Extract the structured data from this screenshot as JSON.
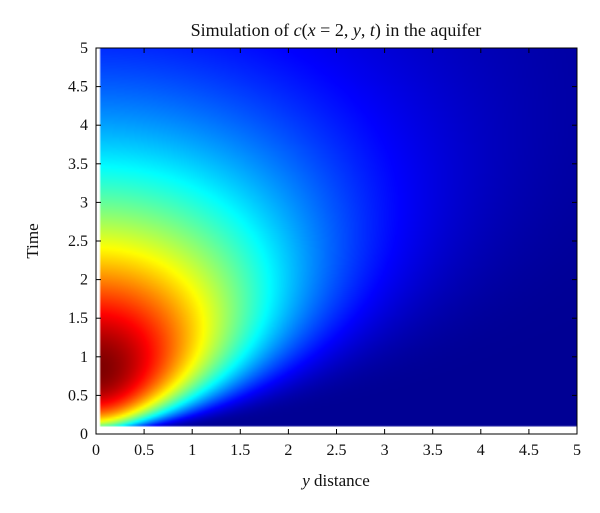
{
  "chart_data": {
    "type": "heatmap",
    "title": {
      "prefix": "Simulation of ",
      "func": "c",
      "args_open": "(",
      "x_var": "x",
      "x_eq": " = 2, ",
      "y_var": "y",
      "comma": ", ",
      "t_var": "t",
      "args_close": ")",
      "suffix": " in the aquifer"
    },
    "xlabel": {
      "var": "y",
      "rest": " distance"
    },
    "ylabel": "Time",
    "x_ticks": [
      "0",
      "0.5",
      "1",
      "1.5",
      "2",
      "2.5",
      "3",
      "3.5",
      "4",
      "4.5",
      "5"
    ],
    "y_ticks": [
      "0",
      "0.5",
      "1",
      "1.5",
      "2",
      "2.5",
      "3",
      "3.5",
      "4",
      "4.5",
      "5"
    ],
    "xlim": [
      0,
      5
    ],
    "ylim": [
      0,
      5
    ],
    "data_x_range": [
      0.05,
      5
    ],
    "data_y_range": [
      0.1,
      5
    ],
    "colormap": "jet",
    "grid": false,
    "peak": {
      "x": 0.05,
      "y": 0.9,
      "relative_value": 1.0
    },
    "contour_levels": [
      {
        "relative_value": 0.9,
        "y_extent": [
          0.68,
          1.18
        ],
        "x_max": 0.3
      },
      {
        "relative_value": 0.6,
        "y_extent": [
          0.42,
          1.7
        ],
        "x_max": 1.25
      },
      {
        "relative_value": 0.45,
        "y_extent": [
          0.3,
          2.3
        ],
        "x_max": 2.1
      },
      {
        "relative_value": 0.3,
        "y_extent": [
          0.2,
          2.95
        ],
        "x_max": 3.1
      }
    ],
    "value_label": "c"
  }
}
